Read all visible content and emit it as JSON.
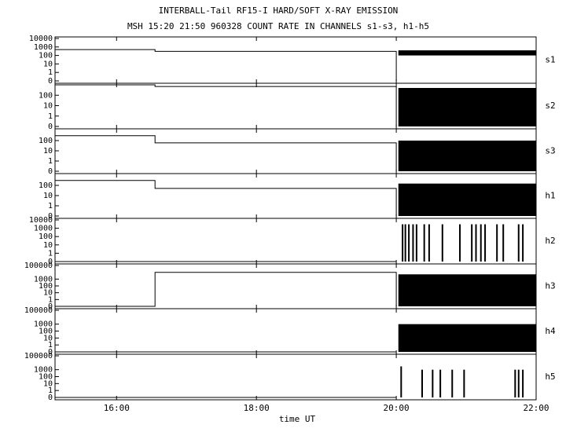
{
  "chart_data": {
    "type": "line",
    "title": "INTERBALL-Tail RF15-I HARD/SOFT X-RAY EMISSION",
    "subtitle": "MSH 15:20 21:50 960328  COUNT RATE IN CHANNELS s1-s3, h1-h5",
    "x_label": "time UT",
    "xlim": [
      15.12,
      22
    ],
    "xticks": [
      {
        "value": 16,
        "label": "16:00"
      },
      {
        "value": 18,
        "label": "18:00"
      },
      {
        "value": 20,
        "label": "20:00"
      },
      {
        "value": 22,
        "label": "22:00"
      }
    ],
    "log": true,
    "color": "#000000",
    "panels": [
      {
        "label": "s1",
        "ylim": [
          0,
          10000
        ],
        "yticks": [
          0,
          1,
          10,
          100,
          1000,
          10000
        ],
        "x": [
          15.12,
          16.55,
          16.55,
          20.0,
          20.0
        ],
        "values": [
          500,
          500,
          300,
          300,
          0
        ],
        "band": {
          "x": [
            20.03,
            22
          ],
          "low": 100,
          "high": 400
        }
      },
      {
        "label": "s2",
        "ylim": [
          0,
          1000
        ],
        "yticks": [
          0,
          1,
          10,
          100
        ],
        "x": [
          15.12,
          16.55,
          16.55,
          20.0,
          20.0
        ],
        "values": [
          1000,
          1000,
          700,
          700,
          0
        ],
        "band": {
          "x": [
            20.03,
            22
          ],
          "low": 0,
          "high": 500
        }
      },
      {
        "label": "s3",
        "ylim": [
          0,
          1000
        ],
        "yticks": [
          0,
          1,
          10,
          100
        ],
        "x": [
          15.12,
          16.55,
          16.55,
          20.0,
          20.0
        ],
        "values": [
          300,
          300,
          60,
          60,
          0
        ],
        "band": {
          "x": [
            20.03,
            22
          ],
          "low": 0,
          "high": 100
        }
      },
      {
        "label": "h1",
        "ylim": [
          0,
          1000
        ],
        "yticks": [
          0,
          1,
          10,
          100
        ],
        "x": [
          15.12,
          16.55,
          16.55,
          20.0,
          20.0
        ],
        "values": [
          300,
          300,
          50,
          50,
          0
        ],
        "band": {
          "x": [
            20.03,
            22
          ],
          "low": 0,
          "high": 150
        }
      },
      {
        "label": "h2",
        "ylim": [
          0,
          10000
        ],
        "yticks": [
          0,
          1,
          10,
          100,
          1000,
          10000
        ],
        "x": [
          15.12,
          20.0
        ],
        "values": [
          0,
          0
        ],
        "spikes": {
          "x": [
            20.09,
            20.13,
            20.18,
            20.24,
            20.29,
            20.4,
            20.47,
            20.66,
            20.91,
            21.08,
            21.14,
            21.21,
            21.27,
            21.44,
            21.53,
            21.75,
            21.81
          ],
          "values": [
            3000,
            3000,
            3000,
            3000,
            3000,
            3000,
            3000,
            3000,
            3000,
            3000,
            3000,
            3000,
            3000,
            3000,
            3000,
            3000,
            3000
          ]
        }
      },
      {
        "label": "h3",
        "ylim": [
          0,
          100000
        ],
        "yticks": [
          0,
          1,
          10,
          100,
          1000,
          100000
        ],
        "x": [
          15.12,
          16.55,
          16.55,
          20.0,
          20.0
        ],
        "values": [
          0,
          0,
          10000,
          10000,
          0
        ],
        "band": {
          "x": [
            20.03,
            22
          ],
          "low": 0,
          "high": 5000
        }
      },
      {
        "label": "h4",
        "ylim": [
          0,
          100000
        ],
        "yticks": [
          0,
          1,
          10,
          100,
          1000,
          100000
        ],
        "x": [
          15.12,
          20.0
        ],
        "values": [
          0,
          0
        ],
        "band": {
          "x": [
            20.03,
            22
          ],
          "low": 0,
          "high": 1000
        }
      },
      {
        "label": "h5",
        "ylim": [
          0,
          100000
        ],
        "yticks": [
          0,
          1,
          10,
          100,
          1000,
          100000
        ],
        "x": [
          15.12,
          20.0
        ],
        "values": [
          0,
          0
        ],
        "spikes": {
          "x": [
            20.07,
            20.37,
            20.52,
            20.63,
            20.8,
            20.97,
            21.7,
            21.75,
            21.81
          ],
          "values": [
            3000,
            1000,
            1000,
            1000,
            1000,
            1000,
            1000,
            1000,
            1000
          ]
        }
      }
    ]
  }
}
